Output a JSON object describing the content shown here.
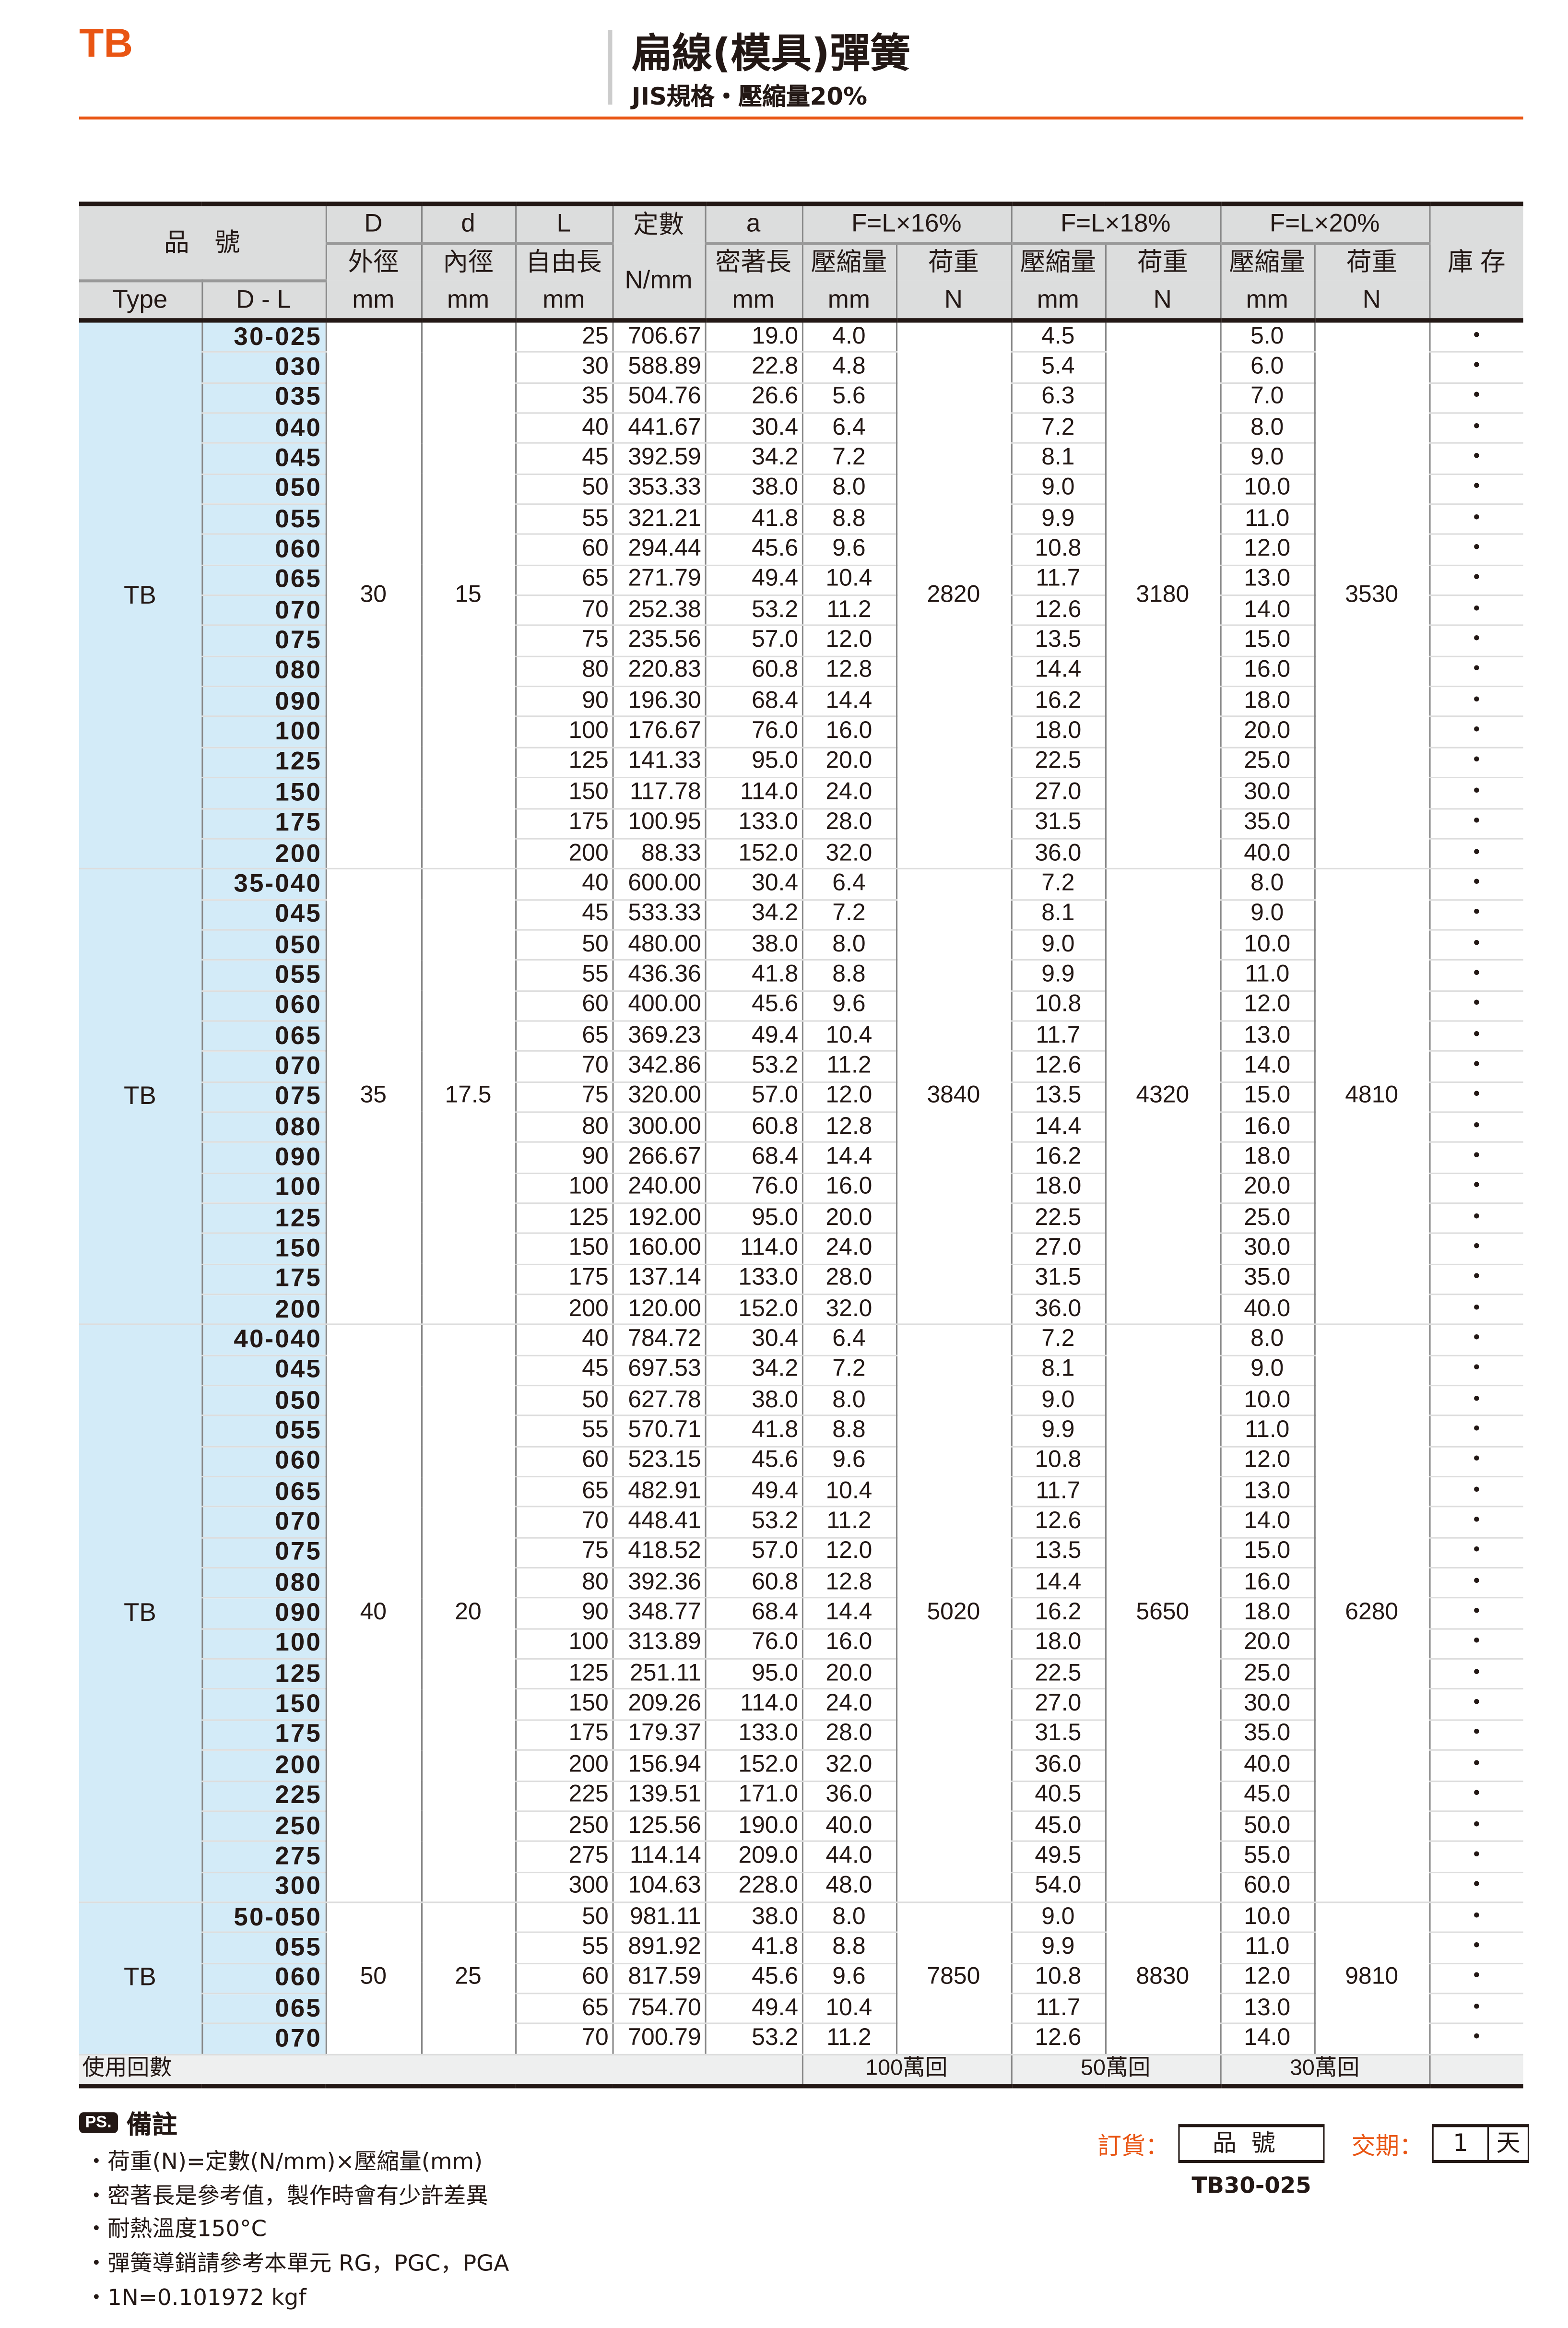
{
  "header": {
    "brand": "TB",
    "title": "扁線(模具)彈簧",
    "subtitle": "JIS規格・壓縮量20%"
  },
  "accent_color": "#e95513",
  "table": {
    "h_part": "品　號",
    "h_D": "D",
    "h_d": "d",
    "h_L": "L",
    "h_k": "定數",
    "h_a": "a",
    "h_f16": "F=L×16%",
    "h_f18": "F=L×18%",
    "h_f20": "F=L×20%",
    "h_od": "外徑",
    "h_id": "內徑",
    "h_free": "自由長",
    "h_kunit": "N/mm",
    "h_solid": "密著長",
    "h_comp": "壓縮量",
    "h_load": "荷重",
    "h_stock": "庫 存",
    "h_type": "Type",
    "h_dl": "D - L",
    "u_mm": "mm",
    "u_N": "N",
    "stock_mark": "・",
    "groups": [
      {
        "type": "TB",
        "D": "30",
        "d": "15",
        "load16": "2820",
        "load18": "3180",
        "load20": "3530",
        "rows": [
          [
            "30-025",
            "25",
            "706.67",
            "19.0",
            "4.0",
            "4.5",
            "5.0"
          ],
          [
            "030",
            "30",
            "588.89",
            "22.8",
            "4.8",
            "5.4",
            "6.0"
          ],
          [
            "035",
            "35",
            "504.76",
            "26.6",
            "5.6",
            "6.3",
            "7.0"
          ],
          [
            "040",
            "40",
            "441.67",
            "30.4",
            "6.4",
            "7.2",
            "8.0"
          ],
          [
            "045",
            "45",
            "392.59",
            "34.2",
            "7.2",
            "8.1",
            "9.0"
          ],
          [
            "050",
            "50",
            "353.33",
            "38.0",
            "8.0",
            "9.0",
            "10.0"
          ],
          [
            "055",
            "55",
            "321.21",
            "41.8",
            "8.8",
            "9.9",
            "11.0"
          ],
          [
            "060",
            "60",
            "294.44",
            "45.6",
            "9.6",
            "10.8",
            "12.0"
          ],
          [
            "065",
            "65",
            "271.79",
            "49.4",
            "10.4",
            "11.7",
            "13.0"
          ],
          [
            "070",
            "70",
            "252.38",
            "53.2",
            "11.2",
            "12.6",
            "14.0"
          ],
          [
            "075",
            "75",
            "235.56",
            "57.0",
            "12.0",
            "13.5",
            "15.0"
          ],
          [
            "080",
            "80",
            "220.83",
            "60.8",
            "12.8",
            "14.4",
            "16.0"
          ],
          [
            "090",
            "90",
            "196.30",
            "68.4",
            "14.4",
            "16.2",
            "18.0"
          ],
          [
            "100",
            "100",
            "176.67",
            "76.0",
            "16.0",
            "18.0",
            "20.0"
          ],
          [
            "125",
            "125",
            "141.33",
            "95.0",
            "20.0",
            "22.5",
            "25.0"
          ],
          [
            "150",
            "150",
            "117.78",
            "114.0",
            "24.0",
            "27.0",
            "30.0"
          ],
          [
            "175",
            "175",
            "100.95",
            "133.0",
            "28.0",
            "31.5",
            "35.0"
          ],
          [
            "200",
            "200",
            "88.33",
            "152.0",
            "32.0",
            "36.0",
            "40.0"
          ]
        ]
      },
      {
        "type": "TB",
        "D": "35",
        "d": "17.5",
        "load16": "3840",
        "load18": "4320",
        "load20": "4810",
        "rows": [
          [
            "35-040",
            "40",
            "600.00",
            "30.4",
            "6.4",
            "7.2",
            "8.0"
          ],
          [
            "045",
            "45",
            "533.33",
            "34.2",
            "7.2",
            "8.1",
            "9.0"
          ],
          [
            "050",
            "50",
            "480.00",
            "38.0",
            "8.0",
            "9.0",
            "10.0"
          ],
          [
            "055",
            "55",
            "436.36",
            "41.8",
            "8.8",
            "9.9",
            "11.0"
          ],
          [
            "060",
            "60",
            "400.00",
            "45.6",
            "9.6",
            "10.8",
            "12.0"
          ],
          [
            "065",
            "65",
            "369.23",
            "49.4",
            "10.4",
            "11.7",
            "13.0"
          ],
          [
            "070",
            "70",
            "342.86",
            "53.2",
            "11.2",
            "12.6",
            "14.0"
          ],
          [
            "075",
            "75",
            "320.00",
            "57.0",
            "12.0",
            "13.5",
            "15.0"
          ],
          [
            "080",
            "80",
            "300.00",
            "60.8",
            "12.8",
            "14.4",
            "16.0"
          ],
          [
            "090",
            "90",
            "266.67",
            "68.4",
            "14.4",
            "16.2",
            "18.0"
          ],
          [
            "100",
            "100",
            "240.00",
            "76.0",
            "16.0",
            "18.0",
            "20.0"
          ],
          [
            "125",
            "125",
            "192.00",
            "95.0",
            "20.0",
            "22.5",
            "25.0"
          ],
          [
            "150",
            "150",
            "160.00",
            "114.0",
            "24.0",
            "27.0",
            "30.0"
          ],
          [
            "175",
            "175",
            "137.14",
            "133.0",
            "28.0",
            "31.5",
            "35.0"
          ],
          [
            "200",
            "200",
            "120.00",
            "152.0",
            "32.0",
            "36.0",
            "40.0"
          ]
        ]
      },
      {
        "type": "TB",
        "D": "40",
        "d": "20",
        "load16": "5020",
        "load18": "5650",
        "load20": "6280",
        "rows": [
          [
            "40-040",
            "40",
            "784.72",
            "30.4",
            "6.4",
            "7.2",
            "8.0"
          ],
          [
            "045",
            "45",
            "697.53",
            "34.2",
            "7.2",
            "8.1",
            "9.0"
          ],
          [
            "050",
            "50",
            "627.78",
            "38.0",
            "8.0",
            "9.0",
            "10.0"
          ],
          [
            "055",
            "55",
            "570.71",
            "41.8",
            "8.8",
            "9.9",
            "11.0"
          ],
          [
            "060",
            "60",
            "523.15",
            "45.6",
            "9.6",
            "10.8",
            "12.0"
          ],
          [
            "065",
            "65",
            "482.91",
            "49.4",
            "10.4",
            "11.7",
            "13.0"
          ],
          [
            "070",
            "70",
            "448.41",
            "53.2",
            "11.2",
            "12.6",
            "14.0"
          ],
          [
            "075",
            "75",
            "418.52",
            "57.0",
            "12.0",
            "13.5",
            "15.0"
          ],
          [
            "080",
            "80",
            "392.36",
            "60.8",
            "12.8",
            "14.4",
            "16.0"
          ],
          [
            "090",
            "90",
            "348.77",
            "68.4",
            "14.4",
            "16.2",
            "18.0"
          ],
          [
            "100",
            "100",
            "313.89",
            "76.0",
            "16.0",
            "18.0",
            "20.0"
          ],
          [
            "125",
            "125",
            "251.11",
            "95.0",
            "20.0",
            "22.5",
            "25.0"
          ],
          [
            "150",
            "150",
            "209.26",
            "114.0",
            "24.0",
            "27.0",
            "30.0"
          ],
          [
            "175",
            "175",
            "179.37",
            "133.0",
            "28.0",
            "31.5",
            "35.0"
          ],
          [
            "200",
            "200",
            "156.94",
            "152.0",
            "32.0",
            "36.0",
            "40.0"
          ],
          [
            "225",
            "225",
            "139.51",
            "171.0",
            "36.0",
            "40.5",
            "45.0"
          ],
          [
            "250",
            "250",
            "125.56",
            "190.0",
            "40.0",
            "45.0",
            "50.0"
          ],
          [
            "275",
            "275",
            "114.14",
            "209.0",
            "44.0",
            "49.5",
            "55.0"
          ],
          [
            "300",
            "300",
            "104.63",
            "228.0",
            "48.0",
            "54.0",
            "60.0"
          ]
        ]
      },
      {
        "type": "TB",
        "D": "50",
        "d": "25",
        "load16": "7850",
        "load18": "8830",
        "load20": "9810",
        "rows": [
          [
            "50-050",
            "50",
            "981.11",
            "38.0",
            "8.0",
            "9.0",
            "10.0"
          ],
          [
            "055",
            "55",
            "891.92",
            "41.8",
            "8.8",
            "9.9",
            "11.0"
          ],
          [
            "060",
            "60",
            "817.59",
            "45.6",
            "9.6",
            "10.8",
            "12.0"
          ],
          [
            "065",
            "65",
            "754.70",
            "49.4",
            "10.4",
            "11.7",
            "13.0"
          ],
          [
            "070",
            "70",
            "700.79",
            "53.2",
            "11.2",
            "12.6",
            "14.0"
          ]
        ]
      }
    ],
    "footer": {
      "label": "使用回數",
      "c16": "100萬回",
      "c18": "50萬回",
      "c20": "30萬回"
    }
  },
  "notes": {
    "icon": "PS.",
    "title": "備註",
    "items": [
      "・荷重(N)=定數(N/mm)×壓縮量(mm)",
      "・密著長是參考值，製作時會有少許差異",
      "・耐熱溫度150°C",
      "・彈簧導銷請參考本單元 RG，PGC，PGA",
      "・1N=0.101972 kgf"
    ]
  },
  "order": {
    "label": "訂貨：",
    "box": "品號",
    "delivery_label": "交期：",
    "days": "1",
    "day_unit": "天",
    "example": "TB30-025"
  }
}
